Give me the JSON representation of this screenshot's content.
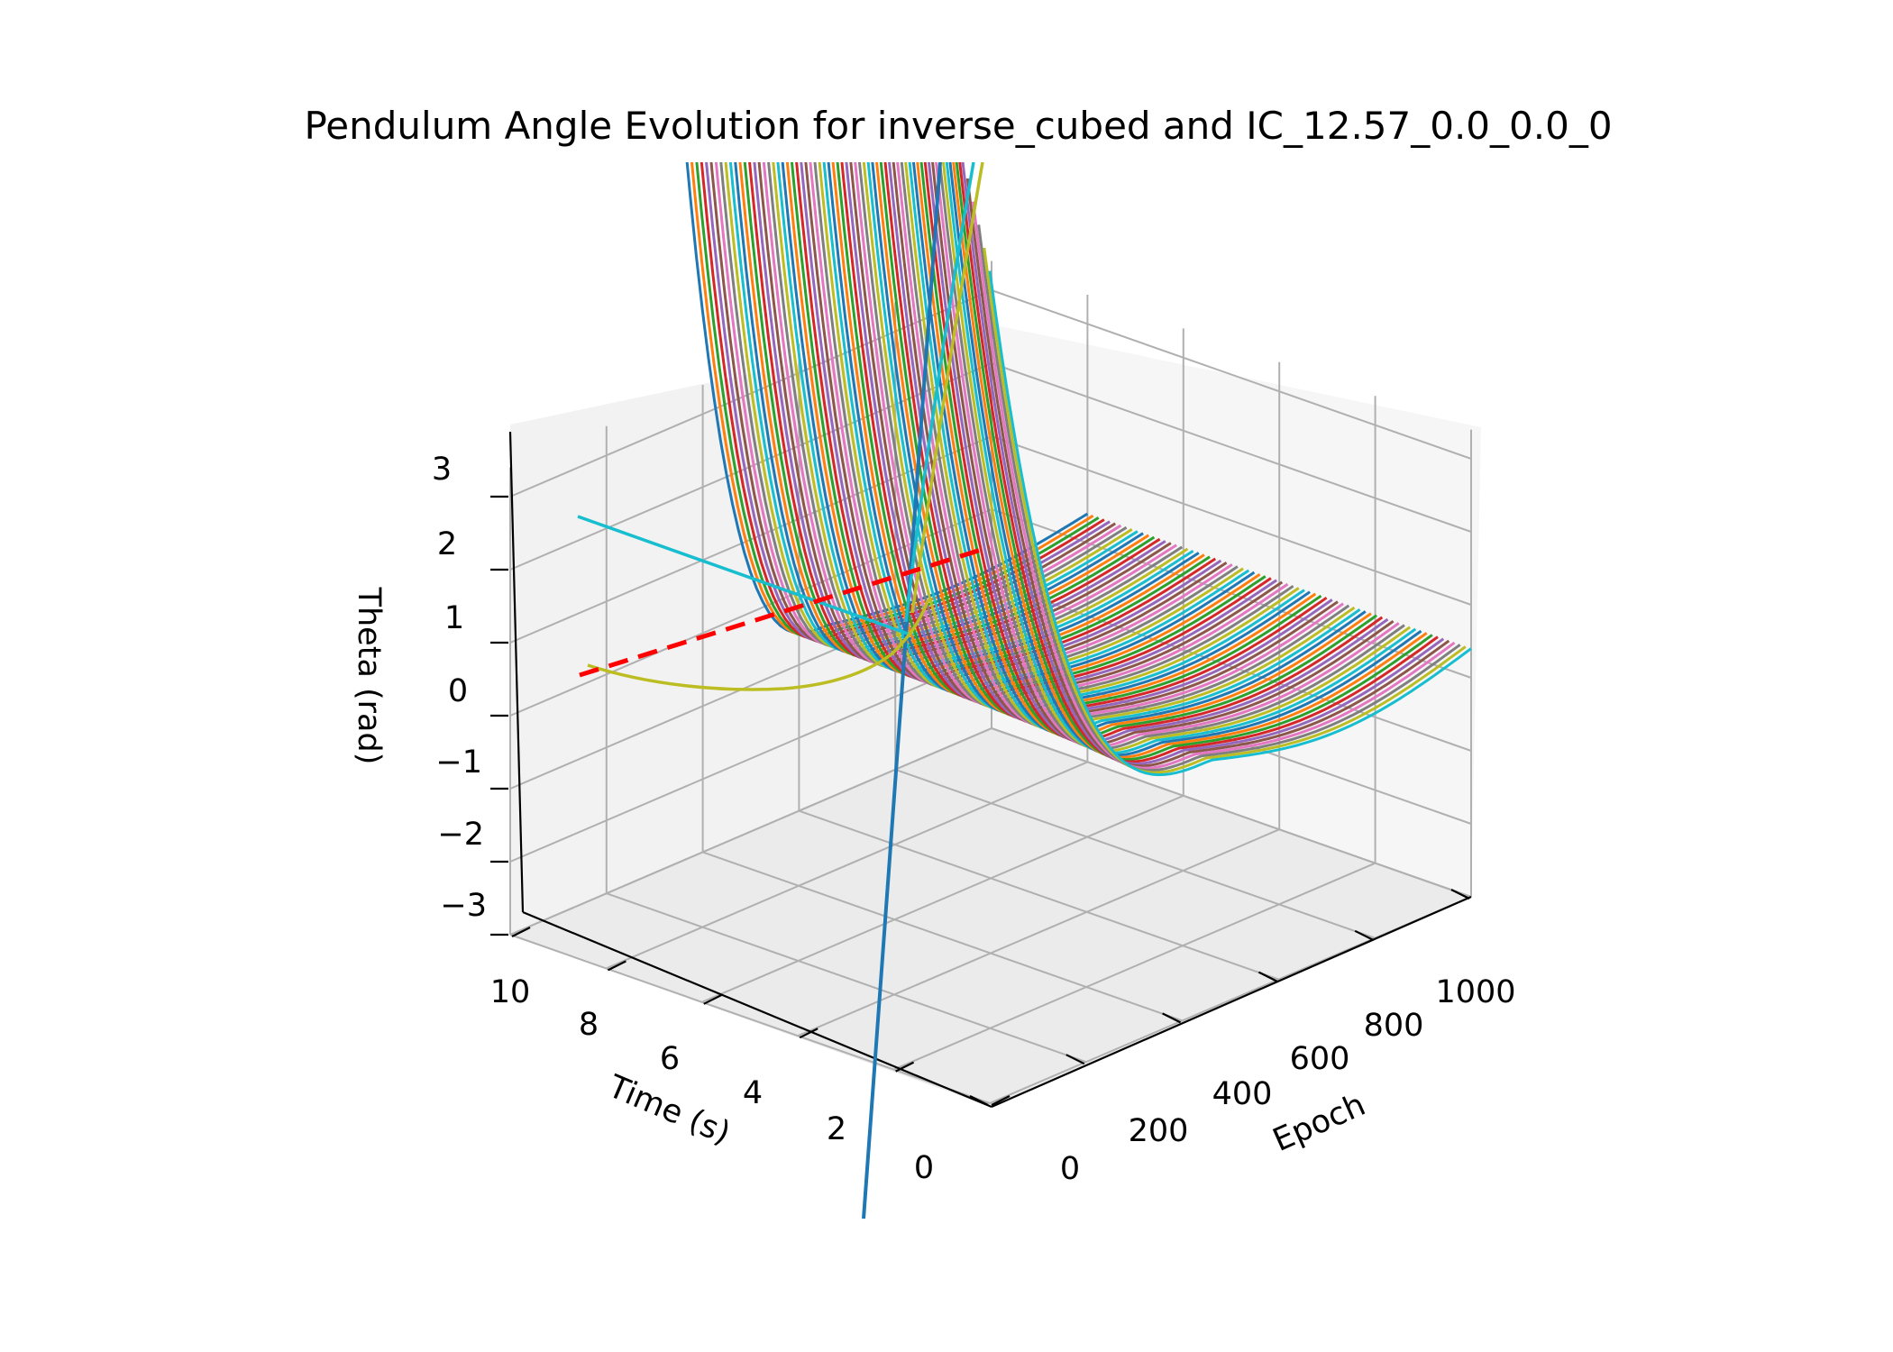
{
  "chart_data": {
    "type": "line",
    "projection": "3d",
    "title": "Pendulum Angle Evolution for inverse_cubed and IC_12.57_0.0_0.0_0",
    "xlabel": "Epoch",
    "ylabel": "Time (s)",
    "zlabel": "Theta (rad)",
    "xlim": [
      0,
      1000
    ],
    "ylim": [
      0,
      10
    ],
    "zlim": [
      -3,
      3
    ],
    "x_ticks": [
      "0",
      "200",
      "400",
      "600",
      "800",
      "1000"
    ],
    "y_ticks": [
      "0",
      "2",
      "4",
      "6",
      "8",
      "10"
    ],
    "z_ticks": [
      "−3",
      "−2",
      "−1",
      "0",
      "1",
      "2",
      "3"
    ],
    "grid": true,
    "legend": "none",
    "series_count": 70,
    "palette": [
      "#1f77b4",
      "#ff7f0e",
      "#2ca02c",
      "#d62728",
      "#9467bd",
      "#8c564b",
      "#e377c2",
      "#7f7f7f",
      "#bcbd22",
      "#17becf"
    ],
    "reference_line": {
      "style": "dashed",
      "color": "#ff0000"
    }
  }
}
